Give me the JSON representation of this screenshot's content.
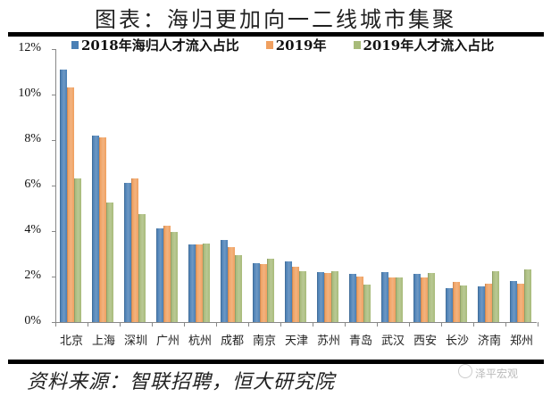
{
  "header": {
    "title": "图表：海归更加向一二线城市集聚"
  },
  "footer": {
    "source": "资料来源：智联招聘，恒大研究院",
    "watermark": "泽平宏观"
  },
  "colors": {
    "series1": "#4a7fb5",
    "series2": "#f0a060",
    "series3": "#a8bb7a"
  },
  "chart_data": {
    "type": "bar",
    "title": "图表：海归更加向一二线城市集聚",
    "xlabel": "",
    "ylabel": "",
    "ylim": [
      0,
      12
    ],
    "yticks": [
      "0%",
      "2%",
      "4%",
      "6%",
      "8%",
      "10%",
      "12%"
    ],
    "grid": false,
    "legend_position": "top",
    "categories": [
      "北京",
      "上海",
      "深圳",
      "广州",
      "杭州",
      "成都",
      "南京",
      "天津",
      "苏州",
      "青岛",
      "武汉",
      "西安",
      "长沙",
      "济南",
      "郑州"
    ],
    "series": [
      {
        "name": "2018年海归人才流入占比",
        "color": "#4a7fb5",
        "values": [
          11.1,
          8.2,
          6.1,
          4.1,
          3.4,
          3.6,
          2.6,
          2.65,
          2.2,
          2.1,
          2.2,
          2.1,
          1.5,
          1.55,
          1.8
        ]
      },
      {
        "name": "2019年",
        "color": "#f0a060",
        "values": [
          10.3,
          8.1,
          6.3,
          4.25,
          3.4,
          3.3,
          2.55,
          2.45,
          2.15,
          2.0,
          1.95,
          1.95,
          1.75,
          1.7,
          1.7
        ]
      },
      {
        "name": "2019年人才流入占比",
        "color": "#a8bb7a",
        "values": [
          6.3,
          5.25,
          4.75,
          3.95,
          3.45,
          2.95,
          2.8,
          2.25,
          2.25,
          1.65,
          1.95,
          2.15,
          1.6,
          2.25,
          2.3
        ]
      }
    ]
  }
}
